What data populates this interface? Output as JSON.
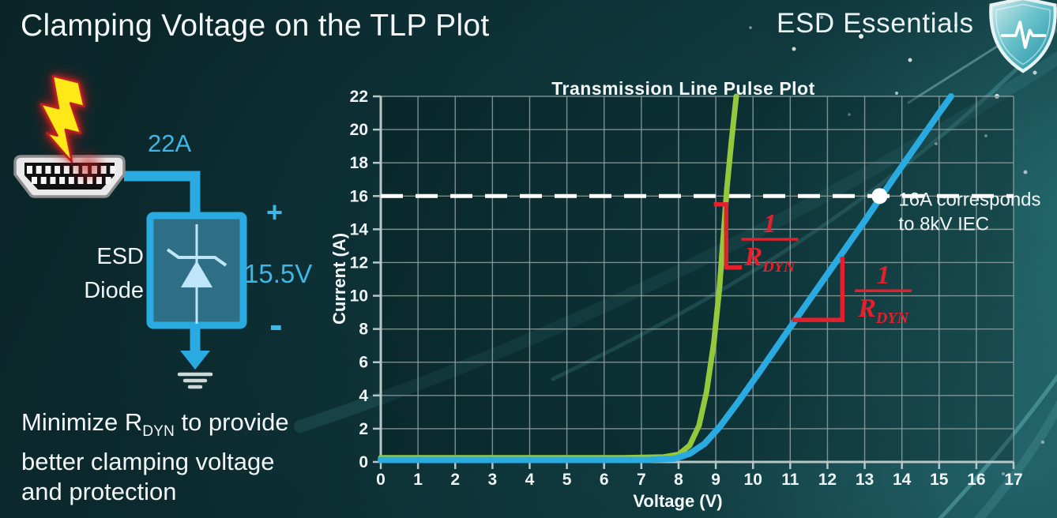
{
  "slide": {
    "title": "Clamping Voltage on the TLP Plot",
    "brand": "ESD Essentials"
  },
  "colors": {
    "accent_cyan": "#29ABE2",
    "curve_green": "#94C83D",
    "curve_blue": "#29ABE2",
    "annotation_red": "#E4202C",
    "text_white": "#F2F6F6"
  },
  "circuit": {
    "surge_current_label": "22A",
    "device_label_line1": "ESD",
    "device_label_line2": "Diode",
    "plus_label": "+",
    "minus_label": "-",
    "clamp_voltage_label": "15.5V",
    "icons": [
      "lightning-icon",
      "hdmi-connector-icon",
      "zener-diode-icon",
      "ground-icon"
    ]
  },
  "note": {
    "line1_prefix": "Minimize R",
    "line1_sub": "DYN",
    "line1_suffix": " to provide",
    "line2": "better clamping voltage",
    "line3": "and protection"
  },
  "chart_data": {
    "type": "line",
    "title": "Transmission Line Pulse Plot",
    "xlabel": "Voltage (V)",
    "ylabel": "Current (A)",
    "xlim": [
      0,
      17
    ],
    "ylim": [
      0,
      22
    ],
    "x_ticks": [
      0,
      1,
      2,
      3,
      4,
      5,
      6,
      7,
      8,
      9,
      10,
      11,
      12,
      13,
      14,
      15,
      16,
      17
    ],
    "y_ticks": [
      0,
      2,
      4,
      6,
      8,
      10,
      12,
      14,
      16,
      18,
      20,
      22
    ],
    "grid": true,
    "legend": "none",
    "series": [
      {
        "name": "green-curve",
        "color": "#94C83D",
        "width": 7,
        "points": [
          [
            0,
            0.25
          ],
          [
            6.5,
            0.25
          ],
          [
            7.6,
            0.3
          ],
          [
            8.0,
            0.45
          ],
          [
            8.3,
            1.0
          ],
          [
            8.55,
            2.2
          ],
          [
            8.75,
            4.2
          ],
          [
            8.95,
            7.2
          ],
          [
            9.1,
            10.5
          ],
          [
            9.2,
            13.5
          ],
          [
            9.3,
            16.5
          ],
          [
            9.42,
            19.3
          ],
          [
            9.55,
            22
          ]
        ]
      },
      {
        "name": "blue-curve",
        "color": "#29ABE2",
        "width": 8,
        "points": [
          [
            0,
            0.12
          ],
          [
            7.2,
            0.12
          ],
          [
            7.9,
            0.2
          ],
          [
            8.3,
            0.5
          ],
          [
            8.7,
            1.1
          ],
          [
            9.1,
            2.1
          ],
          [
            9.6,
            3.6
          ],
          [
            10.2,
            5.5
          ],
          [
            11.0,
            8.1
          ],
          [
            12.0,
            11.3
          ],
          [
            13.0,
            14.5
          ],
          [
            13.45,
            16.0
          ],
          [
            14.0,
            17.8
          ],
          [
            15.0,
            21.0
          ],
          [
            15.32,
            22
          ]
        ]
      }
    ],
    "reference_line": {
      "i": 16,
      "color": "#FFFFFF",
      "dash": "28 16",
      "width": 5
    },
    "marker": {
      "v": 13.4,
      "i": 16,
      "radius": 10,
      "color": "#FFFFFF",
      "label_line1": "16A corresponds",
      "label_line2": "to 8kV IEC"
    },
    "annotations": [
      {
        "color": "#E4202C",
        "bracket": [
          [
            8.95,
            15.5
          ],
          [
            9.28,
            15.5
          ],
          [
            9.28,
            11.7
          ],
          [
            9.7,
            11.7
          ]
        ],
        "numerator": "1",
        "denominator": "R",
        "denominator_sub": "DYN",
        "label_pos": [
          10.45,
          13.4
        ]
      },
      {
        "color": "#E4202C",
        "bracket": [
          [
            12.4,
            12.35
          ],
          [
            12.4,
            8.55
          ],
          [
            11.05,
            8.55
          ]
        ],
        "numerator": "1",
        "denominator": "R",
        "denominator_sub": "DYN",
        "label_pos": [
          13.5,
          10.3
        ]
      }
    ]
  }
}
